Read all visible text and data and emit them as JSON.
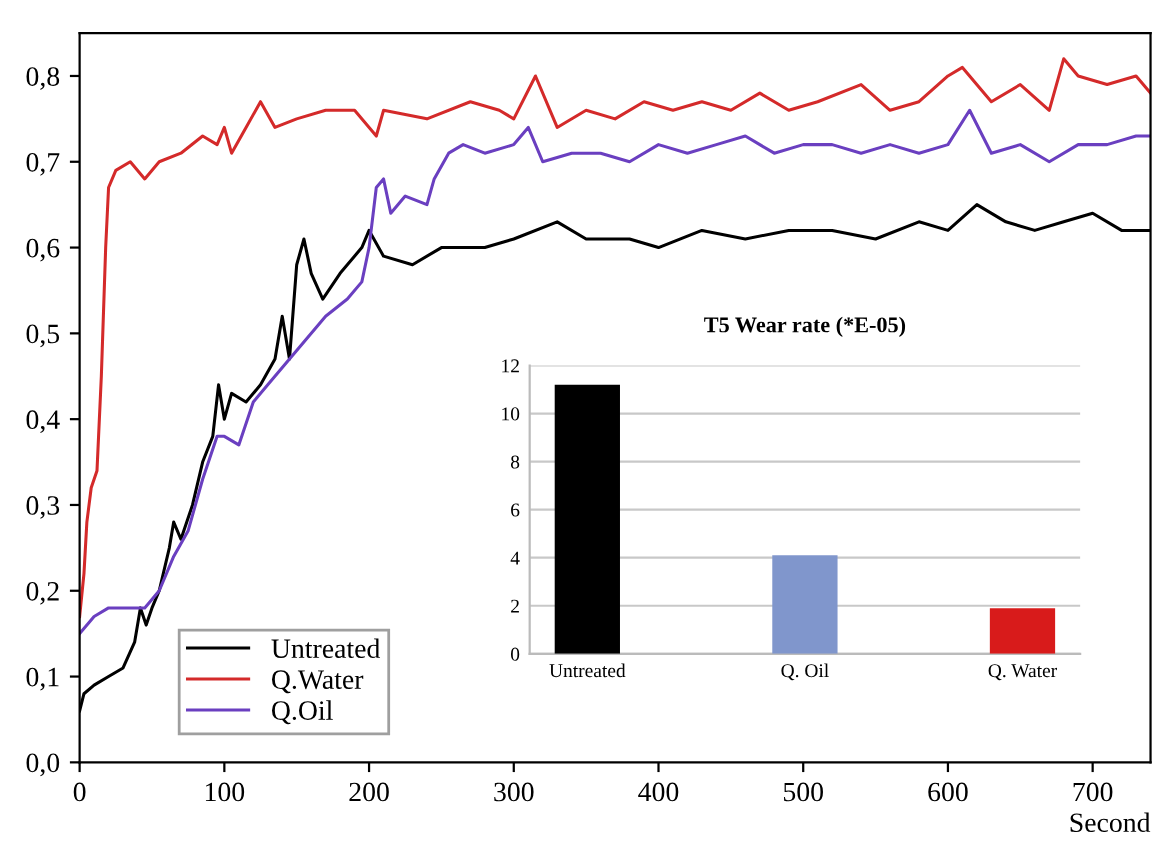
{
  "chart_data": [
    {
      "type": "line",
      "xlabel": "Second",
      "xlim": [
        0,
        740
      ],
      "ylim": [
        0,
        0.85
      ],
      "xticks": [
        0,
        100,
        200,
        300,
        400,
        500,
        600,
        700
      ],
      "yticks": [
        {
          "value": 0,
          "label": "0,0"
        },
        {
          "value": 0.1,
          "label": "0,1"
        },
        {
          "value": 0.2,
          "label": "0,2"
        },
        {
          "value": 0.3,
          "label": "0,3"
        },
        {
          "value": 0.4,
          "label": "0,4"
        },
        {
          "value": 0.5,
          "label": "0,5"
        },
        {
          "value": 0.6,
          "label": "0,6"
        },
        {
          "value": 0.7,
          "label": "0,7"
        },
        {
          "value": 0.8,
          "label": "0,8"
        }
      ],
      "grid": false,
      "legend": "bottom left",
      "marker": "none",
      "line_style": "solid",
      "series": [
        {
          "name": "Untreated",
          "color": "#000000",
          "x": [
            0,
            3,
            10,
            20,
            30,
            38,
            42,
            46,
            50,
            55,
            62,
            65,
            70,
            78,
            85,
            92,
            96,
            100,
            105,
            115,
            125,
            135,
            140,
            145,
            150,
            155,
            160,
            168,
            180,
            195,
            200,
            210,
            230,
            250,
            280,
            300,
            330,
            350,
            380,
            400,
            430,
            460,
            490,
            520,
            550,
            580,
            600,
            620,
            640,
            660,
            680,
            700,
            720,
            740
          ],
          "values": [
            0.06,
            0.08,
            0.09,
            0.1,
            0.11,
            0.14,
            0.18,
            0.16,
            0.18,
            0.2,
            0.25,
            0.28,
            0.26,
            0.3,
            0.35,
            0.38,
            0.44,
            0.4,
            0.43,
            0.42,
            0.44,
            0.47,
            0.52,
            0.47,
            0.58,
            0.61,
            0.57,
            0.54,
            0.57,
            0.6,
            0.62,
            0.59,
            0.58,
            0.6,
            0.6,
            0.61,
            0.63,
            0.61,
            0.61,
            0.6,
            0.62,
            0.61,
            0.62,
            0.62,
            0.61,
            0.63,
            0.62,
            0.65,
            0.63,
            0.62,
            0.63,
            0.64,
            0.62,
            0.62
          ]
        },
        {
          "name": "Q.Water",
          "color": "#d42a2a",
          "x": [
            0,
            3,
            5,
            8,
            12,
            15,
            18,
            20,
            25,
            35,
            45,
            55,
            70,
            85,
            95,
            100,
            105,
            115,
            125,
            135,
            150,
            170,
            190,
            205,
            210,
            240,
            270,
            290,
            300,
            315,
            330,
            350,
            370,
            390,
            410,
            430,
            450,
            470,
            490,
            510,
            540,
            560,
            580,
            600,
            610,
            630,
            650,
            670,
            680,
            690,
            710,
            730,
            740
          ],
          "values": [
            0.17,
            0.22,
            0.28,
            0.32,
            0.34,
            0.45,
            0.6,
            0.67,
            0.69,
            0.7,
            0.68,
            0.7,
            0.71,
            0.73,
            0.72,
            0.74,
            0.71,
            0.74,
            0.77,
            0.74,
            0.75,
            0.76,
            0.76,
            0.73,
            0.76,
            0.75,
            0.77,
            0.76,
            0.75,
            0.8,
            0.74,
            0.76,
            0.75,
            0.77,
            0.76,
            0.77,
            0.76,
            0.78,
            0.76,
            0.77,
            0.79,
            0.76,
            0.77,
            0.8,
            0.81,
            0.77,
            0.79,
            0.76,
            0.82,
            0.8,
            0.79,
            0.8,
            0.78
          ]
        },
        {
          "name": "Q.Oil",
          "color": "#6a3fc0",
          "x": [
            0,
            10,
            20,
            30,
            45,
            55,
            65,
            75,
            85,
            95,
            100,
            110,
            120,
            130,
            150,
            170,
            185,
            195,
            200,
            205,
            210,
            215,
            225,
            240,
            245,
            255,
            265,
            280,
            300,
            310,
            320,
            340,
            360,
            380,
            400,
            420,
            440,
            460,
            480,
            500,
            520,
            540,
            560,
            580,
            600,
            615,
            630,
            650,
            670,
            690,
            710,
            730,
            740
          ],
          "values": [
            0.15,
            0.17,
            0.18,
            0.18,
            0.18,
            0.2,
            0.24,
            0.27,
            0.33,
            0.38,
            0.38,
            0.37,
            0.42,
            0.44,
            0.48,
            0.52,
            0.54,
            0.56,
            0.6,
            0.67,
            0.68,
            0.64,
            0.66,
            0.65,
            0.68,
            0.71,
            0.72,
            0.71,
            0.72,
            0.74,
            0.7,
            0.71,
            0.71,
            0.7,
            0.72,
            0.71,
            0.72,
            0.73,
            0.71,
            0.72,
            0.72,
            0.71,
            0.72,
            0.71,
            0.72,
            0.76,
            0.71,
            0.72,
            0.7,
            0.72,
            0.72,
            0.73,
            0.73
          ]
        }
      ]
    },
    {
      "type": "bar",
      "title": "T5 Wear rate (*E-05)",
      "categories": [
        "Untreated",
        "Q. Oil",
        "Q. Water"
      ],
      "values": [
        11.2,
        4.1,
        1.9
      ],
      "colors": [
        "#000000",
        "#8096cc",
        "#d81b1b"
      ],
      "ylim": [
        0,
        12
      ],
      "yticks": [
        0,
        2,
        4,
        6,
        8,
        10,
        12
      ],
      "grid": "y"
    }
  ]
}
